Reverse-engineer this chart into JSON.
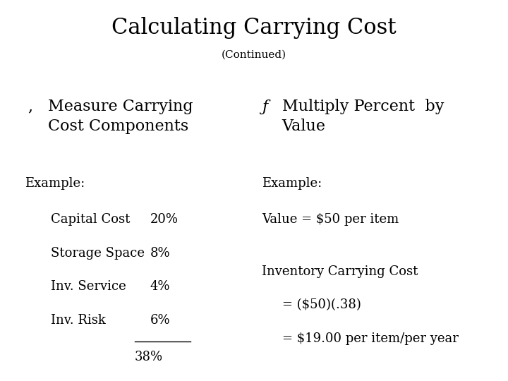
{
  "title": "Calculating Carrying Cost",
  "subtitle": "(Continued)",
  "bg_color": "#ffffff",
  "text_color": "#000000",
  "title_fontsize": 22,
  "subtitle_fontsize": 11,
  "section1_bullet": ",",
  "section1_header": "Measure Carrying\nCost Components",
  "section2_bullet": "ƒ",
  "section2_header": "Multiply Percent  by\nValue",
  "example1_label": "Example:",
  "example1_items": [
    [
      "Capital Cost",
      "20%"
    ],
    [
      "Storage Space",
      "8%"
    ],
    [
      "Inv. Service",
      "4%"
    ],
    [
      "Inv. Risk",
      "6%"
    ]
  ],
  "example1_total": "38%",
  "example2_label": "Example:",
  "example2_lines": [
    "Value = $50 per item",
    "",
    "Inventory Carrying Cost",
    "= ($50)(.38)",
    "= $19.00 per item/per year"
  ],
  "body_fontsize": 13,
  "header_fontsize": 16,
  "font_serif": "DejaVu Serif",
  "font_serif_italic": "DejaVu Serif"
}
